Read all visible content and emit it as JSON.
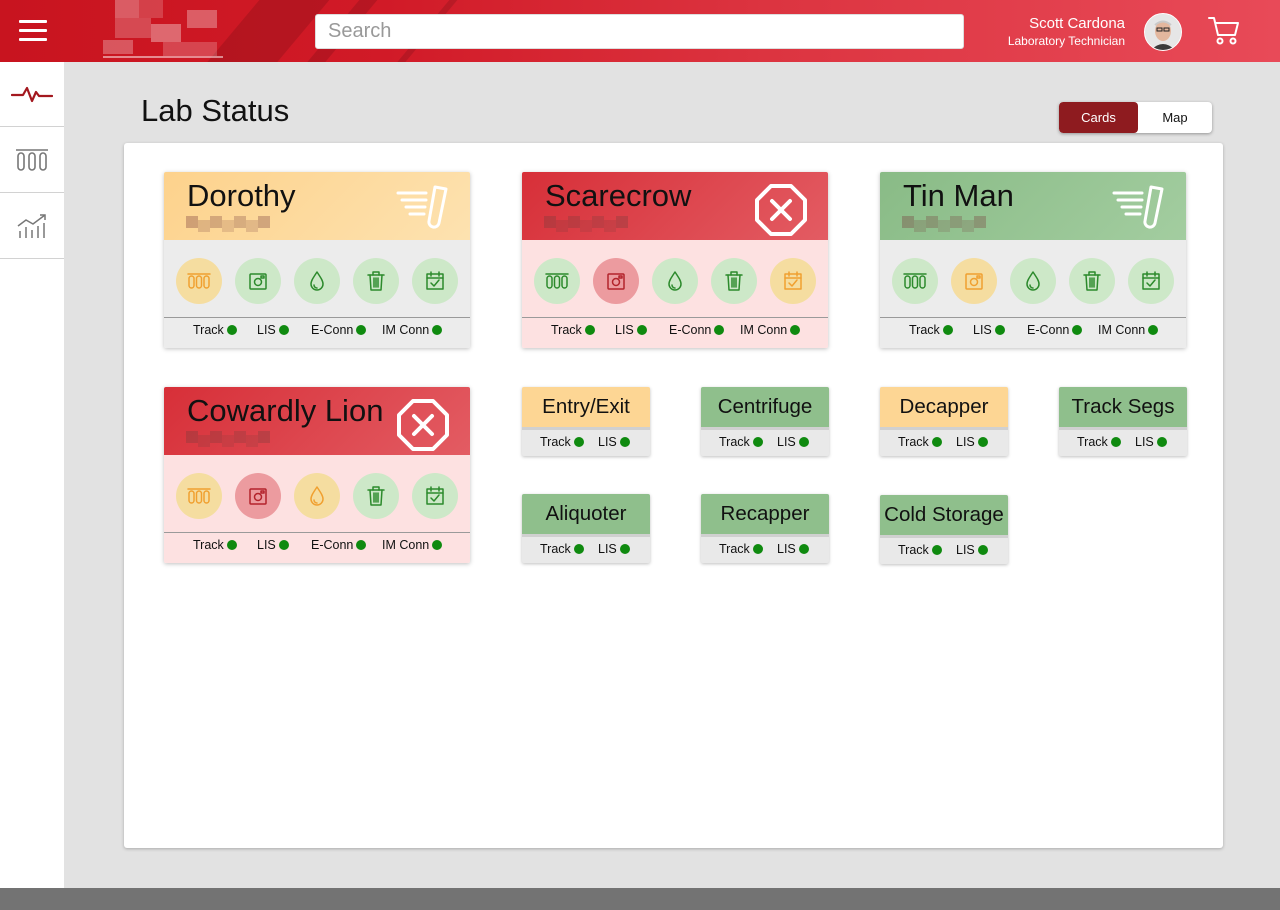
{
  "header": {
    "search_placeholder": "Search",
    "user_name": "Scott Cardona",
    "user_role": "Laboratory Technician",
    "brand_color": "#c8141f"
  },
  "nav": {
    "items": [
      {
        "icon": "pulse-icon"
      },
      {
        "icon": "test-tubes-icon"
      },
      {
        "icon": "trend-chart-icon"
      }
    ]
  },
  "main": {
    "title": "Lab Status",
    "view_toggle": {
      "cards": "Cards",
      "map": "Map",
      "selected": "Cards"
    }
  },
  "large_cards": [
    {
      "name": "Dorothy",
      "state": "warning",
      "head_icon": "sample-speed-icon",
      "modules": [
        {
          "icon": "test-tubes-icon",
          "state": "warning"
        },
        {
          "icon": "camera-icon",
          "state": "ok"
        },
        {
          "icon": "drop-icon",
          "state": "ok"
        },
        {
          "icon": "trash-icon",
          "state": "ok"
        },
        {
          "icon": "calendar-check-icon",
          "state": "ok"
        }
      ],
      "statuses": [
        "Track",
        "LIS",
        "E-Conn",
        "IM Conn"
      ]
    },
    {
      "name": "Scarecrow",
      "state": "error",
      "head_icon": "stop-error-icon",
      "modules": [
        {
          "icon": "test-tubes-icon",
          "state": "ok"
        },
        {
          "icon": "camera-icon",
          "state": "error"
        },
        {
          "icon": "drop-icon",
          "state": "ok"
        },
        {
          "icon": "trash-icon",
          "state": "ok"
        },
        {
          "icon": "calendar-check-icon",
          "state": "warning"
        }
      ],
      "statuses": [
        "Track",
        "LIS",
        "E-Conn",
        "IM Conn"
      ]
    },
    {
      "name": "Tin Man",
      "state": "ok",
      "head_icon": "sample-speed-icon",
      "modules": [
        {
          "icon": "test-tubes-icon",
          "state": "ok"
        },
        {
          "icon": "camera-icon",
          "state": "warning"
        },
        {
          "icon": "drop-icon",
          "state": "ok"
        },
        {
          "icon": "trash-icon",
          "state": "ok"
        },
        {
          "icon": "calendar-check-icon",
          "state": "ok"
        }
      ],
      "statuses": [
        "Track",
        "LIS",
        "E-Conn",
        "IM Conn"
      ]
    },
    {
      "name": "Cowardly Lion",
      "state": "error",
      "head_icon": "stop-error-icon",
      "modules": [
        {
          "icon": "test-tubes-icon",
          "state": "warning"
        },
        {
          "icon": "camera-icon",
          "state": "error"
        },
        {
          "icon": "drop-icon",
          "state": "warning"
        },
        {
          "icon": "trash-icon",
          "state": "ok"
        },
        {
          "icon": "calendar-check-icon",
          "state": "ok"
        }
      ],
      "statuses": [
        "Track",
        "LIS",
        "E-Conn",
        "IM Conn"
      ]
    }
  ],
  "small_cards": [
    {
      "name": "Entry/Exit",
      "state": "warning",
      "statuses": [
        "Track",
        "LIS"
      ]
    },
    {
      "name": "Centrifuge",
      "state": "ok",
      "statuses": [
        "Track",
        "LIS"
      ]
    },
    {
      "name": "Decapper",
      "state": "warning",
      "statuses": [
        "Track",
        "LIS"
      ]
    },
    {
      "name": "Track Segs",
      "state": "ok",
      "statuses": [
        "Track",
        "LIS"
      ]
    },
    {
      "name": "Aliquoter",
      "state": "ok",
      "statuses": [
        "Track",
        "LIS"
      ]
    },
    {
      "name": "Recapper",
      "state": "ok",
      "statuses": [
        "Track",
        "LIS"
      ]
    },
    {
      "name": "Cold Storage",
      "state": "ok",
      "statuses": [
        "Track",
        "LIS"
      ]
    }
  ],
  "colors": {
    "ok_head": "#8fbf8c",
    "warning_head": "#fdd694",
    "error_head": "#d9353e",
    "ok_body": "#ececec",
    "error_body": "#fde1e1",
    "ok_circle": "#cde8c8",
    "warning_circle": "#f5dda0",
    "error_circle": "#ec9b9f",
    "ok_icon": "#2c8a2c",
    "warning_icon": "#f0a030",
    "error_icon": "#b3232b",
    "status_dot": "#0f8a0f"
  }
}
